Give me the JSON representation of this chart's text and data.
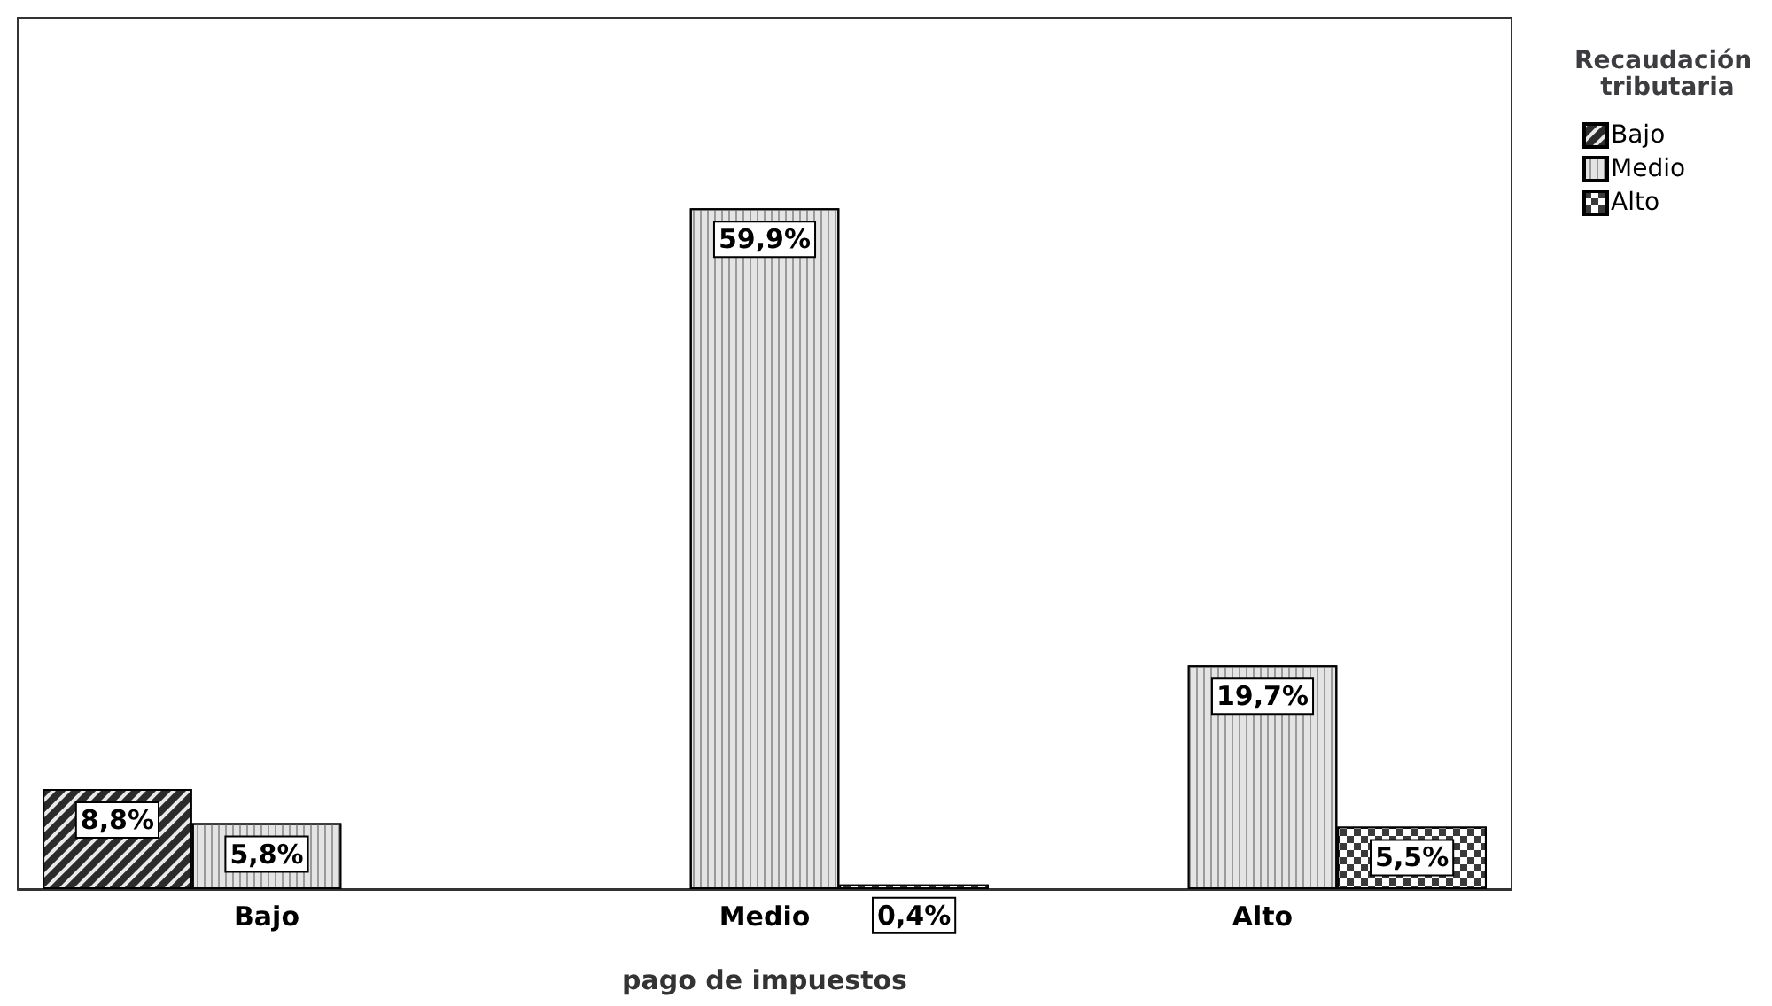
{
  "chart_data": {
    "type": "bar",
    "xlabel": "pago de impuestos",
    "legend_title": "Recaudación tributaria",
    "legend": "top right",
    "grid": false,
    "categories": [
      "Bajo",
      "Medio",
      "Alto"
    ],
    "series": [
      {
        "name": "Bajo",
        "color": "#2b2b2b",
        "values": [
          8.8,
          null,
          null
        ],
        "value_labels": [
          "8,8%",
          null,
          null
        ]
      },
      {
        "name": "Medio",
        "color": "#e4e4e4",
        "values": [
          5.8,
          59.9,
          19.7
        ],
        "value_labels": [
          "5,8%",
          "59,9%",
          "19,7%"
        ]
      },
      {
        "name": "Alto",
        "color": "#3a3a3a",
        "values": [
          null,
          0.4,
          5.5
        ],
        "value_labels": [
          null,
          "0,4%",
          "5,5%"
        ]
      }
    ]
  }
}
